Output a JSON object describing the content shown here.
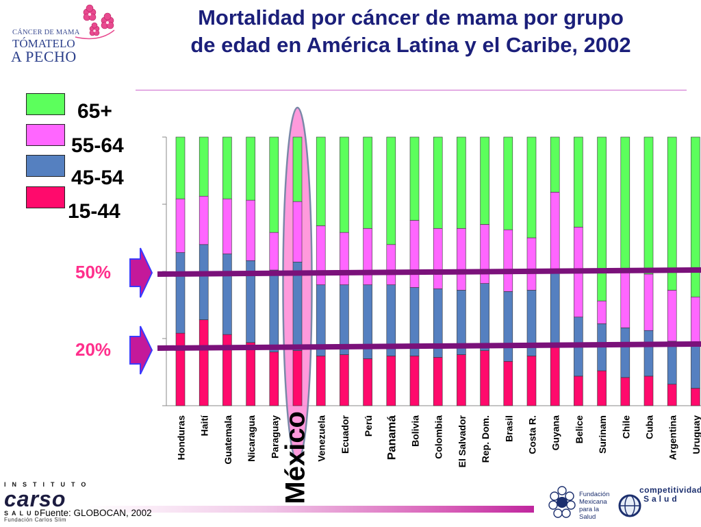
{
  "header": {
    "title_line1": "Mortalidad por cáncer de mama por grupo",
    "title_line2": "de edad en América Latina y el Caribe, 2002"
  },
  "logo_left": {
    "line1": "CÁNCER DE MAMA",
    "line2": "TÓMATELO",
    "line3": "A PECHO"
  },
  "legend": {
    "items": [
      {
        "label": "65+",
        "color": "#5cff5c"
      },
      {
        "label": "55-64",
        "color": "#ff66ff"
      },
      {
        "label": "45-54",
        "color": "#5580c0"
      },
      {
        "label": "15-44",
        "color": "#ff0a6c"
      }
    ]
  },
  "reference_lines": {
    "line_50": "50%",
    "line_20": "20%"
  },
  "footer": {
    "source": "Fuente: GLOBOCAN, 2002",
    "carso_top": "INSTITUTO",
    "carso_main": "carso",
    "carso_sub": "SALUD",
    "carso_foot": "Fundación Carlos Slim",
    "fundacion_text": "Fundación Mexicana para la Salud",
    "competitividad_line1": "competitividad",
    "competitividad_line2": "Salud"
  },
  "chart_data": {
    "type": "bar",
    "stacked": true,
    "ylim": [
      0,
      100
    ],
    "ylabel": "",
    "xlabel": "",
    "highlight": "México",
    "categories": [
      "Honduras",
      "Haití",
      "Guatemala",
      "Nicaragua",
      "Paraguay",
      "México",
      "Venezuela",
      "Ecuador",
      "Perú",
      "Panamá",
      "Bolivia",
      "Colombia",
      "El Salvador",
      "Rep. Dom.",
      "Brasil",
      "Costa R.",
      "Guyana",
      "Belice",
      "Surinam",
      "Chile",
      "Cuba",
      "Argentina",
      "Uruguay"
    ],
    "series": [
      {
        "name": "15-44",
        "color": "#ff0a6c",
        "values": [
          27,
          32,
          26.5,
          23.5,
          20,
          20.5,
          18.5,
          19,
          17.5,
          18.5,
          18.5,
          18,
          19,
          20.5,
          16.5,
          18.5,
          22,
          11,
          13,
          10.5,
          11,
          8,
          6.5
        ]
      },
      {
        "name": "45-54",
        "color": "#5580c0",
        "values": [
          30,
          28,
          30,
          30.5,
          30.5,
          33,
          26.5,
          26,
          27.5,
          26.5,
          25.5,
          25.5,
          24,
          25,
          26,
          24.5,
          28,
          22,
          17.5,
          18.5,
          17,
          16,
          16
        ]
      },
      {
        "name": "55-64",
        "color": "#ff66ff",
        "values": [
          20,
          18,
          20.5,
          22.5,
          14,
          22.5,
          22,
          19.5,
          21,
          15,
          25,
          22.5,
          23,
          22,
          23,
          19.5,
          29.5,
          33.5,
          8.5,
          20.5,
          21,
          19,
          18
        ]
      },
      {
        "name": "65+",
        "color": "#5cff5c",
        "values": [
          23,
          22,
          23,
          23.5,
          35.5,
          24,
          33,
          35.5,
          34,
          40,
          31,
          34,
          34,
          32.5,
          34.5,
          37.5,
          20.5,
          33.5,
          61,
          50.5,
          51,
          57,
          59.5
        ]
      }
    ]
  }
}
